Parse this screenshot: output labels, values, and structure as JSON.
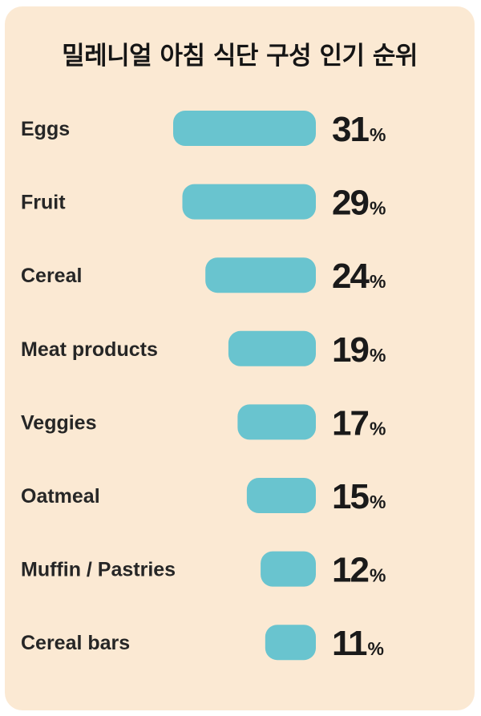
{
  "chart_data": {
    "type": "bar",
    "orientation": "horizontal",
    "title": "밀레니얼 아침 식단 구성 인기 순위",
    "categories": [
      "Eggs",
      "Fruit",
      "Cereal",
      "Meat products",
      "Veggies",
      "Oatmeal",
      "Muffin / Pastries",
      "Cereal bars"
    ],
    "values": [
      31,
      29,
      24,
      19,
      17,
      15,
      12,
      11
    ],
    "value_suffix": "%",
    "xlim": [
      0,
      31
    ],
    "grid": false,
    "legend": "none",
    "bar_align": "right",
    "colors": {
      "background": "#fbe9d3",
      "bar": "#69c4cf",
      "text": "#1a1a1a"
    }
  }
}
